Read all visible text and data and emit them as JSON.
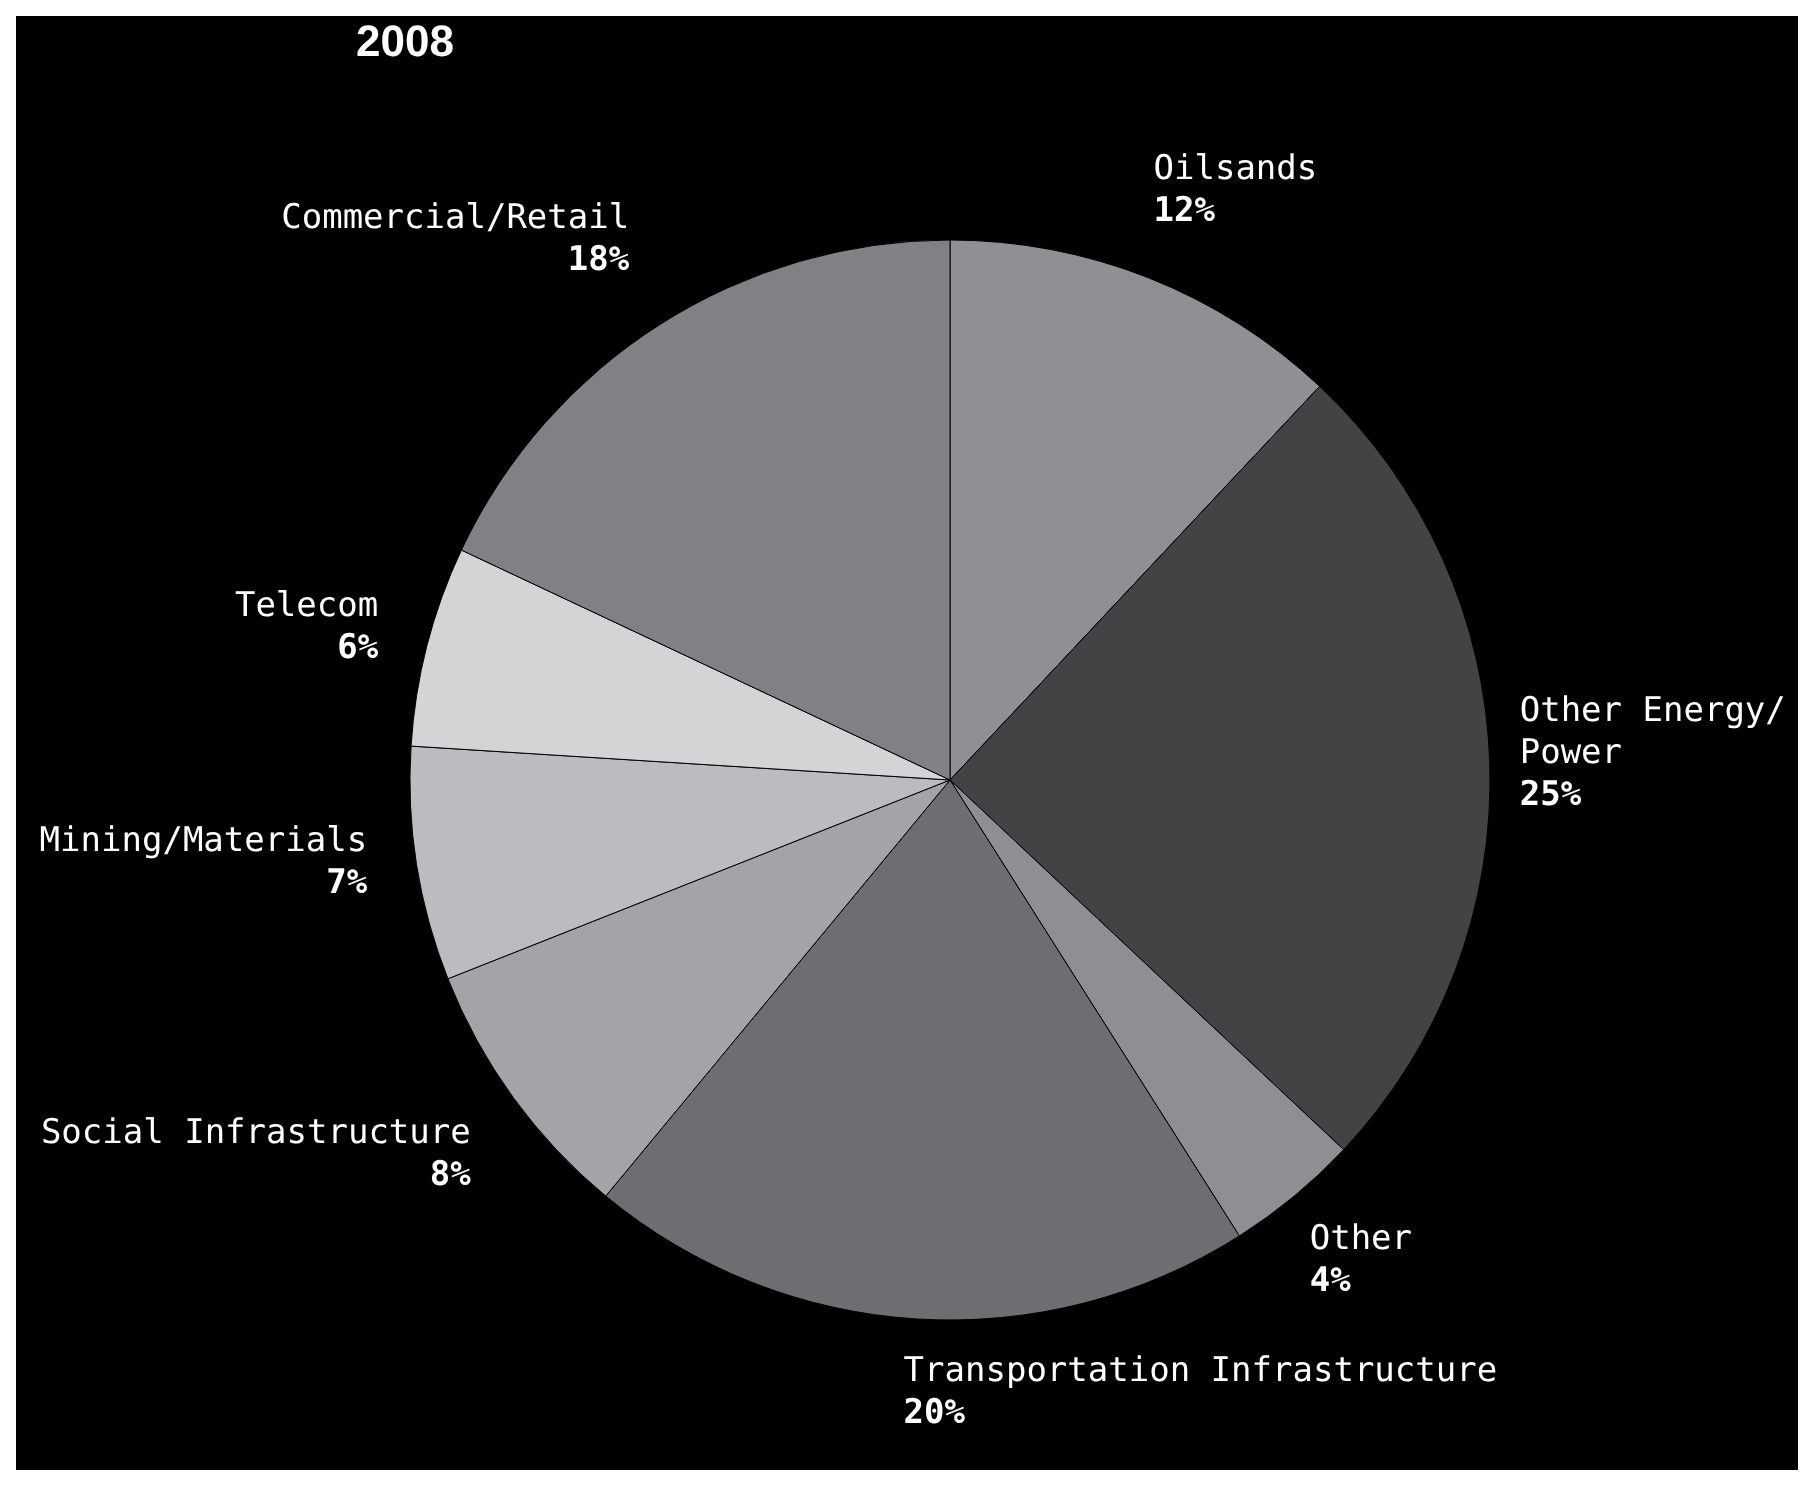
{
  "chart_data": {
    "type": "pie",
    "title": "2008",
    "categories": [
      "Oilsands",
      "Other Energy/Power",
      "Other",
      "Transportation Infrastructure",
      "Social Infrastructure",
      "Mining/Materials",
      "Telecom",
      "Commercial/Retail"
    ],
    "values": [
      12,
      25,
      4,
      20,
      8,
      7,
      6,
      18
    ],
    "value_labels": [
      "12%",
      "25%",
      "4%",
      "20%",
      "8%",
      "7%",
      "6%",
      "18%"
    ],
    "colors": [
      "#8f9094",
      "#434345",
      "#8e8f92",
      "#6d6e71",
      "#a3a4a7",
      "#bbbcbf",
      "#d3d4d6",
      "#808184"
    ]
  }
}
